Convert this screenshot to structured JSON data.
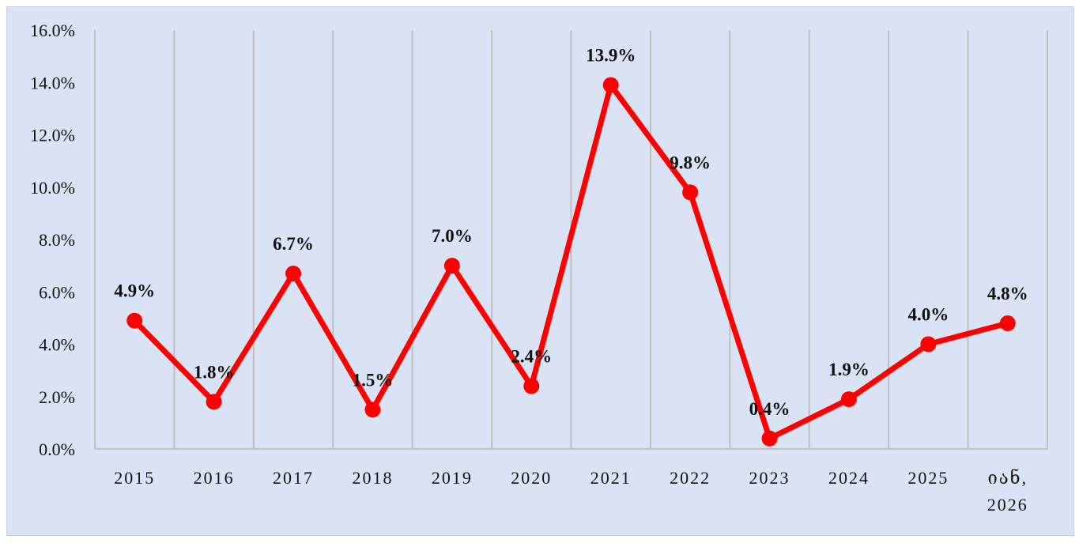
{
  "chart_data": {
    "type": "line",
    "categories": [
      "2015",
      "2016",
      "2017",
      "2018",
      "2019",
      "2020",
      "2021",
      "2022",
      "2023",
      "2024",
      "2025",
      "იან, 2026"
    ],
    "series": [
      {
        "values": [
          4.9,
          1.8,
          6.7,
          1.5,
          7.0,
          2.4,
          13.9,
          9.8,
          0.4,
          1.9,
          4.0,
          4.8
        ]
      }
    ],
    "data_labels": [
      "4.9%",
      "1.8%",
      "6.7%",
      "1.5%",
      "7.0%",
      "2.4%",
      "13.9%",
      "9.8%",
      "0.4%",
      "1.9%",
      "4.0%",
      "4.8%"
    ],
    "y_ticks": [
      "0.0%",
      "2.0%",
      "4.0%",
      "6.0%",
      "8.0%",
      "10.0%",
      "12.0%",
      "14.0%",
      "16.0%"
    ],
    "ylim": [
      0,
      16
    ],
    "grid": "vertical",
    "legend": "none",
    "title": "",
    "colors": {
      "line": "#ff0000",
      "background": "#dae3f3",
      "grid": "#bfbfbf"
    }
  }
}
